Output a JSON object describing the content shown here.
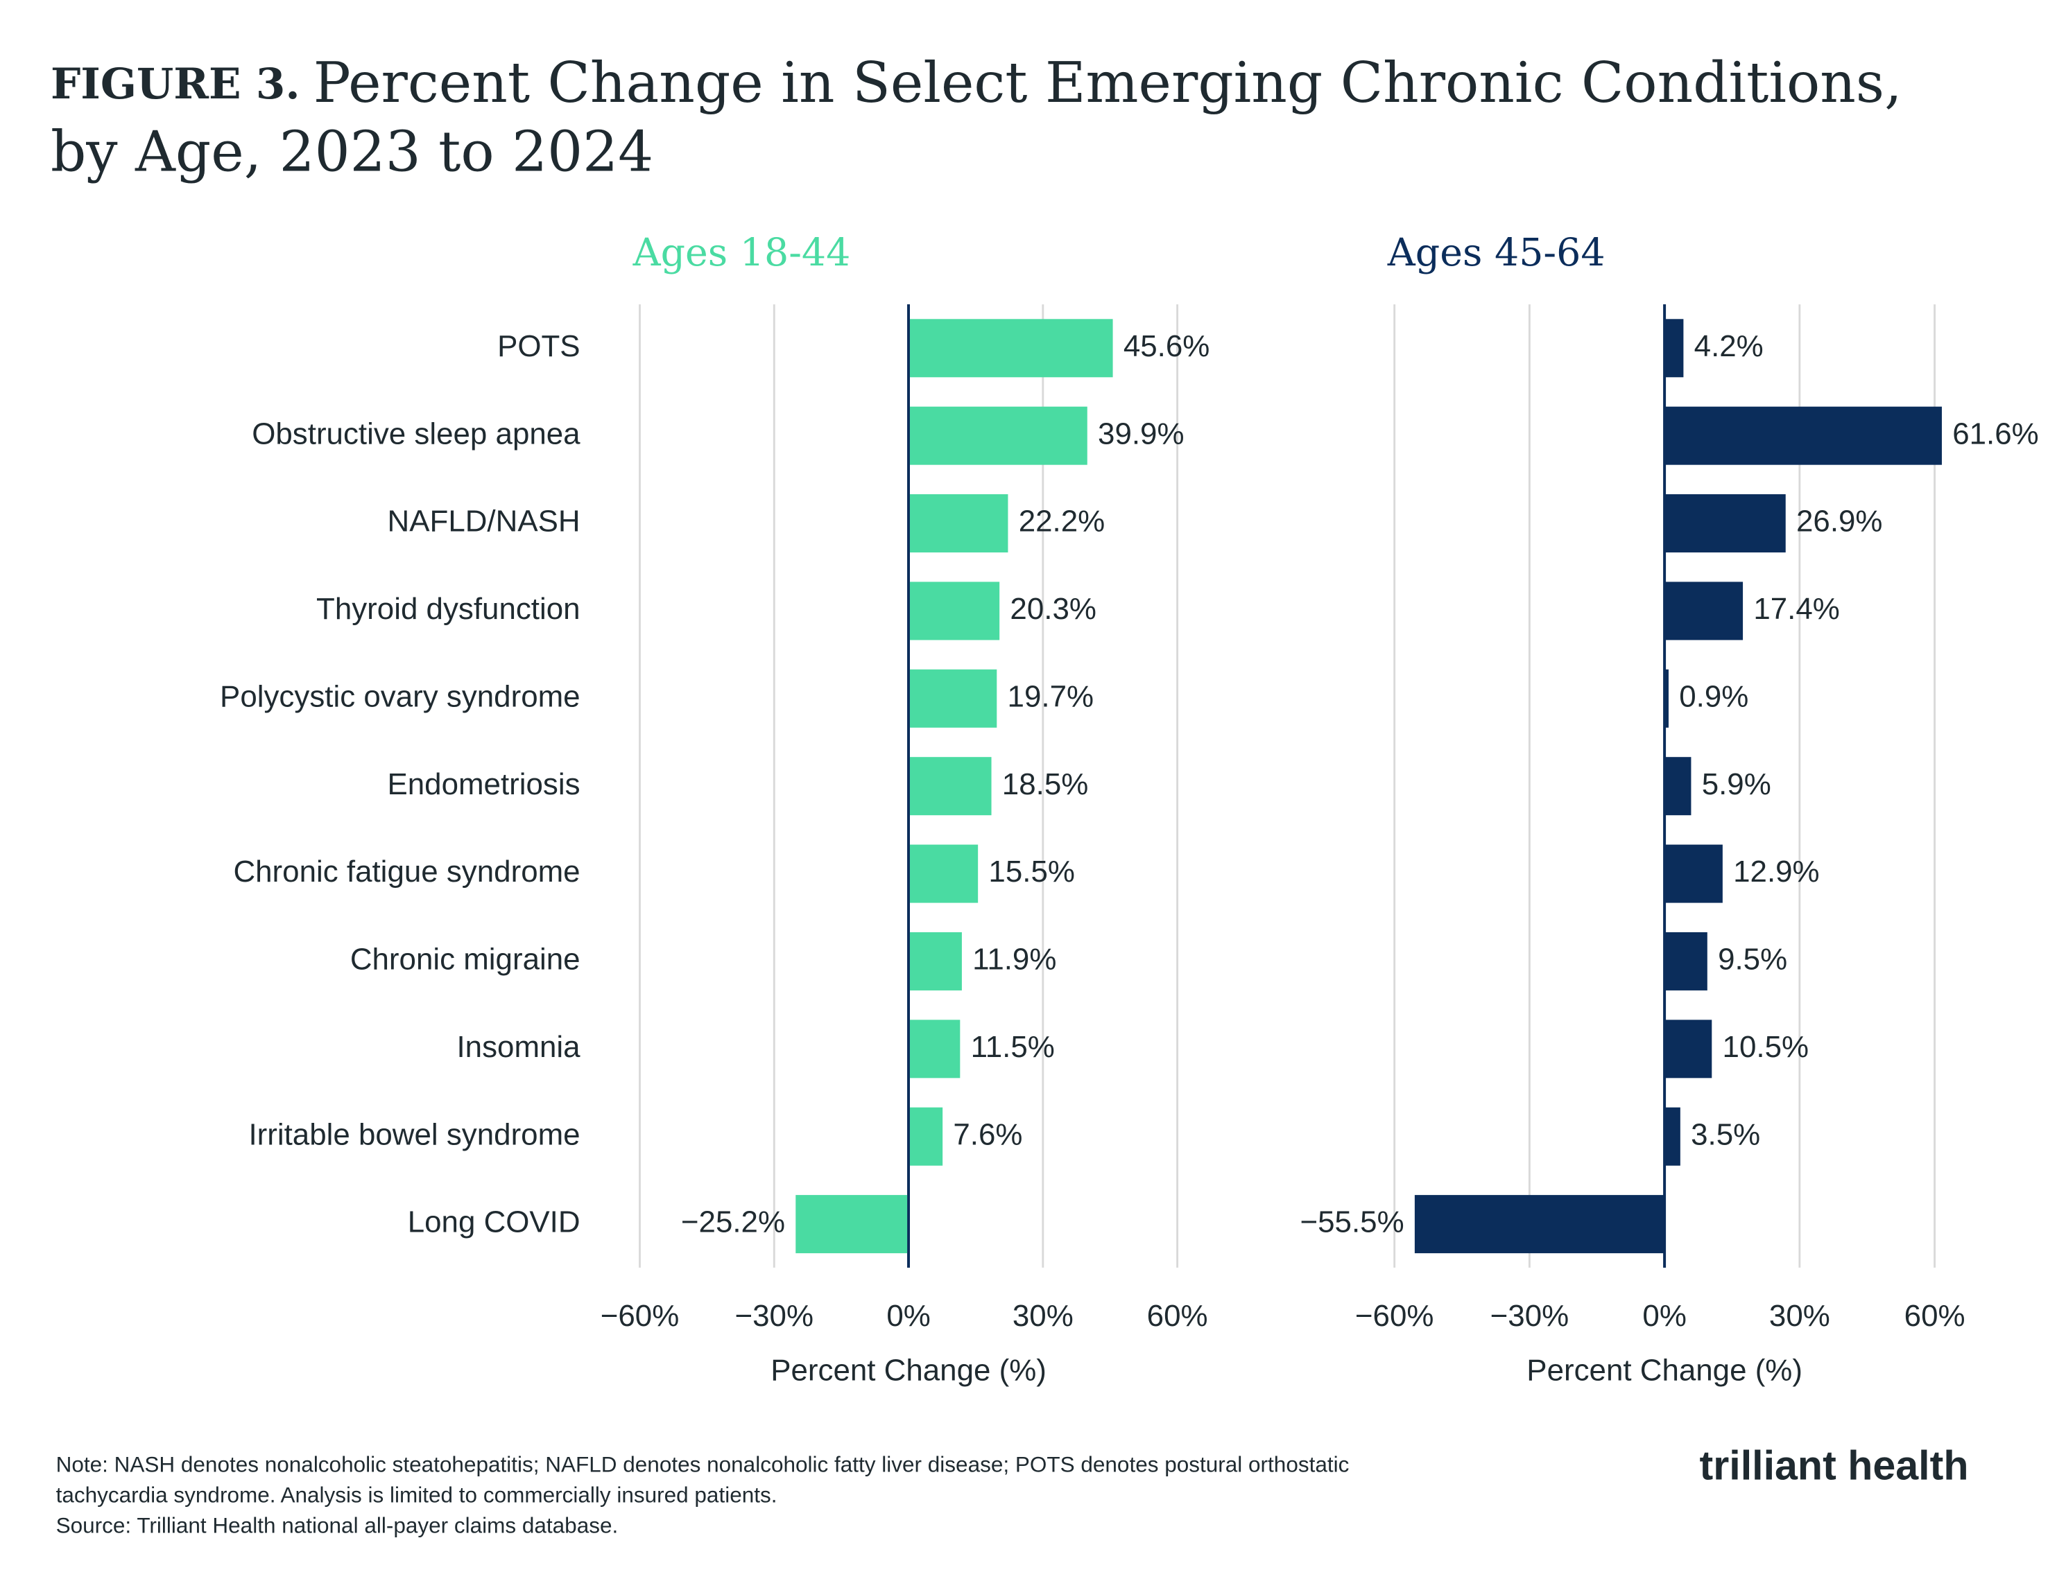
{
  "figure_label": "FIGURE 3.",
  "title_lines": [
    "Percent Change in Select Emerging Chronic Conditions,",
    "by Age, 2023 to 2024"
  ],
  "note_lines": [
    "Note: NASH denotes nonalcoholic steatohepatitis; NAFLD denotes nonalcoholic fatty liver disease; POTS denotes postural orthostatic",
    "tachycardia syndrome. Analysis is limited to commercially insured patients.",
    "Source: Trilliant Health national all-payer claims database."
  ],
  "logo": "trilliant health",
  "chart_data": [
    {
      "type": "hbar",
      "title": "Ages 18-44",
      "color": "#4adba2",
      "categories": [
        "POTS",
        "Obstructive sleep apnea",
        "NAFLD/NASH",
        "Thyroid dysfunction",
        "Polycystic ovary syndrome",
        "Endometriosis",
        "Chronic fatigue syndrome",
        "Chronic migraine",
        "Insomnia",
        "Irritable bowel syndrome",
        "Long COVID"
      ],
      "values": [
        45.6,
        39.9,
        22.2,
        20.3,
        19.7,
        18.5,
        15.5,
        11.9,
        11.5,
        7.6,
        -25.2
      ],
      "value_labels": [
        "45.6%",
        "39.9%",
        "22.2%",
        "20.3%",
        "19.7%",
        "18.5%",
        "15.5%",
        "11.9%",
        "11.5%",
        "7.6%",
        "−25.2%"
      ],
      "xlim": [
        -60,
        60
      ],
      "xticks": [
        {
          "value": -60,
          "label": "−60%"
        },
        {
          "value": -30,
          "label": "−30%"
        },
        {
          "value": 0,
          "label": "0%"
        },
        {
          "value": 30,
          "label": "30%"
        },
        {
          "value": 60,
          "label": "60%"
        }
      ],
      "xlabel": "Percent Change (%)",
      "grid": true
    },
    {
      "type": "hbar",
      "title": "Ages 45-64",
      "color": "#0b2d5b",
      "values": [
        4.2,
        61.6,
        26.9,
        17.4,
        0.9,
        5.9,
        12.9,
        9.5,
        10.5,
        3.5,
        -55.5
      ],
      "value_labels": [
        "4.2%",
        "61.6%",
        "26.9%",
        "17.4%",
        "0.9%",
        "5.9%",
        "12.9%",
        "9.5%",
        "10.5%",
        "3.5%",
        "−55.5%"
      ],
      "xlim": [
        -60,
        60
      ],
      "xticks": [
        {
          "value": -60,
          "label": "−60%"
        },
        {
          "value": -30,
          "label": "−30%"
        },
        {
          "value": 0,
          "label": "0%"
        },
        {
          "value": 30,
          "label": "30%"
        },
        {
          "value": 60,
          "label": "60%"
        }
      ],
      "xlabel": "Percent Change (%)",
      "grid": true
    }
  ]
}
